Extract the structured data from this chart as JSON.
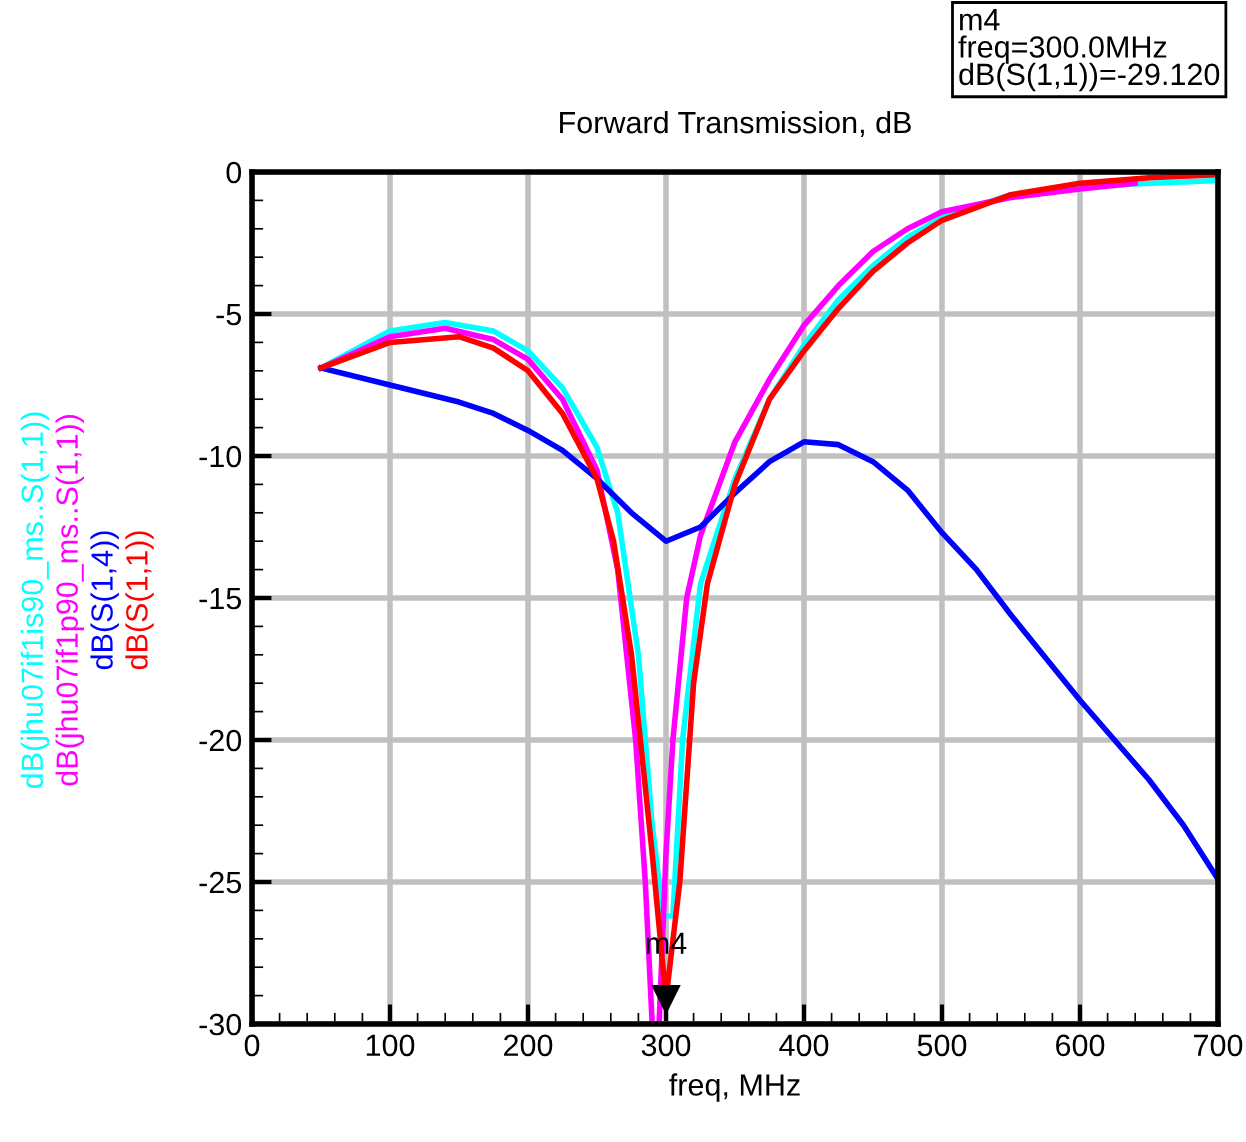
{
  "chart_data": {
    "type": "line",
    "title": "Forward Transmission, dB",
    "xlabel": "freq, MHz",
    "xlim": [
      0,
      700
    ],
    "ylim": [
      -30,
      0
    ],
    "xticks": [
      0,
      100,
      200,
      300,
      400,
      500,
      600,
      700
    ],
    "yticks": [
      -30,
      -25,
      -20,
      -15,
      -10,
      -5,
      0
    ],
    "grid": true,
    "legend": "left",
    "marker": "none",
    "line_style": "solid",
    "series": [
      {
        "name": "dB(jhu07if1is90_ms..S(1,1))",
        "color": "#00ffff",
        "x": [
          50,
          100,
          140,
          175,
          200,
          225,
          250,
          265,
          280,
          290,
          298,
          305,
          312,
          325,
          350,
          375,
          400,
          425,
          450,
          475,
          500,
          550,
          600,
          700
        ],
        "values": [
          -6.9,
          -5.6,
          -5.3,
          -5.6,
          -6.3,
          -7.6,
          -9.7,
          -12,
          -17,
          -23,
          -26.2,
          -26.2,
          -20,
          -14.5,
          -10.8,
          -8,
          -6.1,
          -4.5,
          -3.3,
          -2.3,
          -1.6,
          -0.8,
          -0.5,
          -0.3
        ]
      },
      {
        "name": "dB(jhu07if1p90_ms..S(1,1))",
        "color": "#ff00ff",
        "x": [
          50,
          100,
          140,
          175,
          200,
          225,
          250,
          265,
          278,
          285,
          290,
          295,
          300,
          305,
          315,
          325,
          350,
          375,
          400,
          425,
          450,
          475,
          500,
          550,
          600,
          640
        ],
        "values": [
          -6.9,
          -5.8,
          -5.5,
          -5.9,
          -6.6,
          -8,
          -10.5,
          -14,
          -20,
          -25,
          -30,
          -30,
          -24,
          -20,
          -15,
          -12.8,
          -9.5,
          -7.3,
          -5.4,
          -4,
          -2.8,
          -2,
          -1.4,
          -0.9,
          -0.6,
          -0.4
        ]
      },
      {
        "name": "dB(S(1,4))",
        "color": "#0000ff",
        "x": [
          50,
          100,
          150,
          175,
          200,
          225,
          250,
          275,
          300,
          325,
          350,
          375,
          400,
          425,
          450,
          475,
          500,
          525,
          550,
          575,
          600,
          625,
          650,
          675,
          700
        ],
        "values": [
          -6.9,
          -7.5,
          -8.1,
          -8.5,
          -9.1,
          -9.8,
          -10.8,
          -12,
          -13,
          -12.5,
          -11.3,
          -10.2,
          -9.5,
          -9.6,
          -10.2,
          -11.2,
          -12.7,
          -14,
          -15.6,
          -17.1,
          -18.6,
          -20,
          -21.4,
          -23,
          -24.9
        ]
      },
      {
        "name": "dB(S(1,1))",
        "color": "#ff0000",
        "x": [
          50,
          100,
          150,
          175,
          200,
          225,
          250,
          262,
          275,
          290,
          300,
          310,
          320,
          330,
          350,
          375,
          400,
          425,
          450,
          475,
          500,
          550,
          600,
          650,
          700
        ],
        "values": [
          -6.9,
          -6,
          -5.8,
          -6.2,
          -7,
          -8.5,
          -10.8,
          -13,
          -17,
          -24,
          -29.12,
          -25,
          -18,
          -14.5,
          -11,
          -8,
          -6.3,
          -4.8,
          -3.5,
          -2.5,
          -1.7,
          -0.8,
          -0.4,
          -0.2,
          -0.1
        ]
      }
    ],
    "annotations": [
      {
        "text": "m4",
        "x": 300,
        "y": -29.12
      },
      "m4\nfreq=300.0MHz\ndB(S(1,1))=-29.120"
    ]
  }
}
